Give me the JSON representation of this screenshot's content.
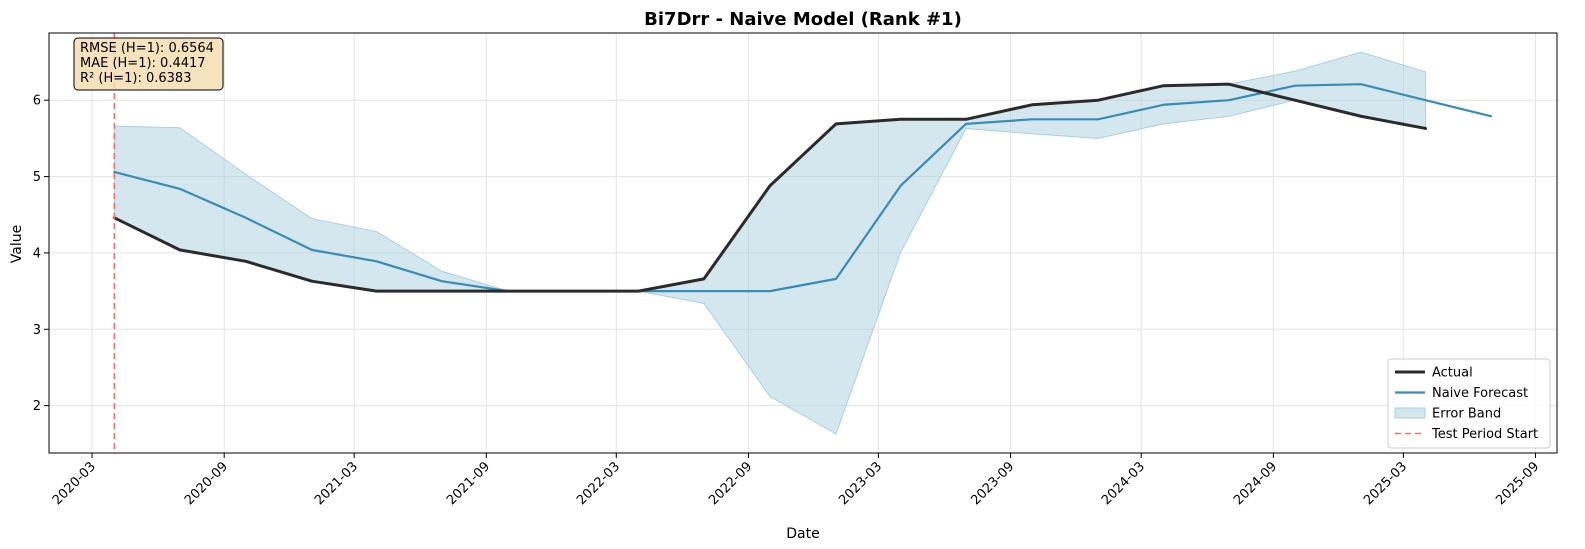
{
  "chart_data": {
    "type": "line",
    "title": "Bi7Drr - Naive Model (Rank #1)",
    "xlabel": "Date",
    "ylabel": "Value",
    "ylim": [
      1.38,
      6.88
    ],
    "xlim": [
      "2020-01-01",
      "2025-10-01"
    ],
    "x_ticks": [
      "2020-03",
      "2020-09",
      "2021-03",
      "2021-09",
      "2022-03",
      "2022-09",
      "2023-03",
      "2023-09",
      "2024-03",
      "2024-09",
      "2025-03",
      "2025-09"
    ],
    "y_ticks": [
      2,
      3,
      4,
      5,
      6
    ],
    "grid": true,
    "legend_position": "lower-right",
    "test_period_start": "2020-04-01",
    "series": [
      {
        "name": "Actual",
        "color": "#2b2b2b",
        "x": [
          "2020-04-01",
          "2020-07-01",
          "2020-10-01",
          "2021-01-01",
          "2021-04-01",
          "2021-07-01",
          "2021-10-01",
          "2022-01-01",
          "2022-04-01",
          "2022-07-01",
          "2022-10-01",
          "2023-01-01",
          "2023-04-01",
          "2023-07-01",
          "2023-10-01",
          "2024-01-01",
          "2024-04-01",
          "2024-07-01",
          "2024-10-01",
          "2025-01-01",
          "2025-04-01"
        ],
        "values": [
          4.46,
          4.04,
          3.89,
          3.63,
          3.5,
          3.5,
          3.5,
          3.5,
          3.5,
          3.66,
          4.88,
          5.69,
          5.75,
          5.75,
          5.94,
          6.0,
          6.19,
          6.21,
          6.0,
          5.79,
          5.63
        ]
      },
      {
        "name": "Naive Forecast",
        "color": "#3a8bb5",
        "x": [
          "2020-04-01",
          "2020-07-01",
          "2020-10-01",
          "2021-01-01",
          "2021-04-01",
          "2021-07-01",
          "2021-10-01",
          "2022-01-01",
          "2022-04-01",
          "2022-07-01",
          "2022-10-01",
          "2023-01-01",
          "2023-04-01",
          "2023-07-01",
          "2023-10-01",
          "2024-01-01",
          "2024-04-01",
          "2024-07-01",
          "2024-10-01",
          "2025-01-01",
          "2025-04-01",
          "2025-07-01"
        ],
        "values": [
          5.06,
          4.84,
          4.46,
          4.04,
          3.89,
          3.63,
          3.5,
          3.5,
          3.5,
          3.5,
          3.5,
          3.66,
          4.88,
          5.69,
          5.75,
          5.75,
          5.94,
          6.0,
          6.19,
          6.21,
          6.0,
          5.79
        ]
      }
    ],
    "error_band": {
      "name": "Error Band",
      "color": "#a9cfe0",
      "x": [
        "2020-04-01",
        "2020-07-01",
        "2020-10-01",
        "2021-01-01",
        "2021-04-01",
        "2021-07-01",
        "2021-10-01",
        "2022-01-01",
        "2022-04-01",
        "2022-07-01",
        "2022-10-01",
        "2023-01-01",
        "2023-04-01",
        "2023-07-01",
        "2023-10-01",
        "2024-01-01",
        "2024-04-01",
        "2024-07-01",
        "2024-10-01",
        "2025-01-01",
        "2025-04-01"
      ],
      "lower": [
        4.46,
        4.04,
        3.89,
        3.63,
        3.5,
        3.5,
        3.5,
        3.5,
        3.5,
        3.34,
        2.12,
        1.63,
        4.01,
        5.63,
        5.56,
        5.5,
        5.69,
        5.79,
        6.0,
        5.79,
        5.63
      ],
      "upper": [
        5.66,
        5.64,
        5.03,
        4.45,
        4.28,
        3.76,
        3.5,
        3.5,
        3.5,
        3.66,
        4.88,
        5.69,
        5.75,
        5.75,
        5.94,
        6.0,
        6.19,
        6.21,
        6.38,
        6.63,
        6.37
      ]
    },
    "test_line": {
      "name": "Test Period Start",
      "color": "#ff6b6b"
    },
    "metrics": [
      "RMSE (H=1): 0.6564",
      "MAE (H=1): 0.4417",
      "R² (H=1): 0.6383"
    ],
    "legend": [
      "Actual",
      "Naive Forecast",
      "Error Band",
      "Test Period Start"
    ]
  }
}
